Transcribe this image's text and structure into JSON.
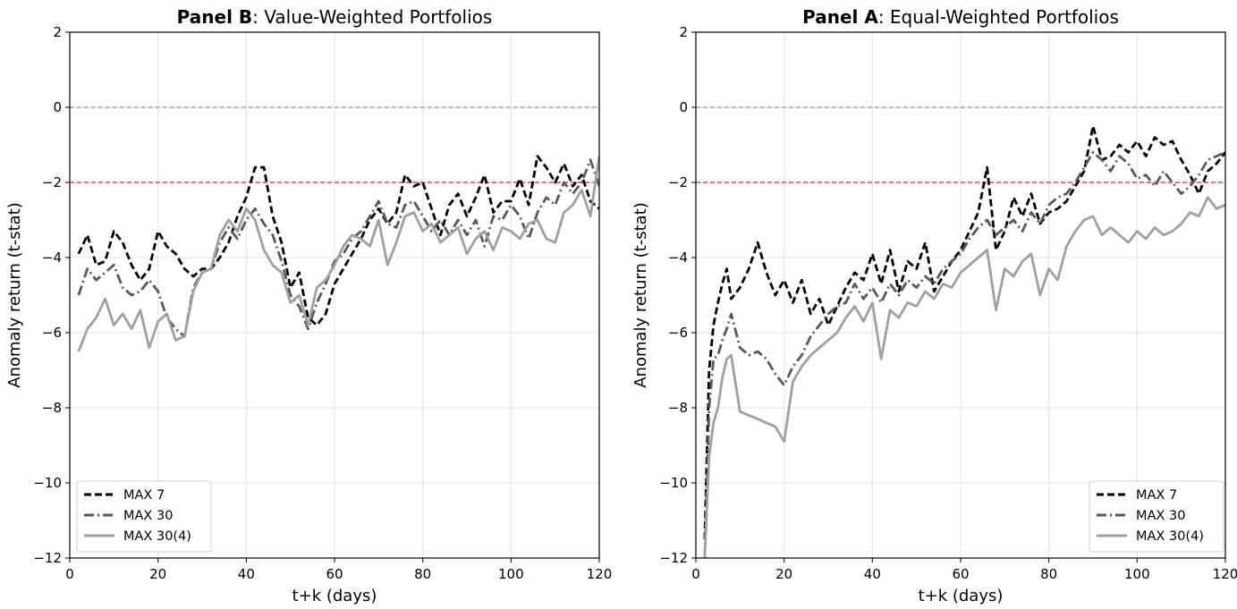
{
  "chart_data": [
    {
      "type": "line",
      "panel": "left",
      "title_bold": "Panel B",
      "title_rest": ": Value-Weighted Portfolios",
      "xlabel": "t+k (days)",
      "ylabel": "Anomaly return (t-stat)",
      "xlim": [
        0,
        120
      ],
      "ylim": [
        -12,
        2
      ],
      "xticks": [
        0,
        20,
        40,
        60,
        80,
        100,
        120
      ],
      "yticks": [
        2,
        0,
        -2,
        -4,
        -6,
        -8,
        -10,
        -12
      ],
      "xtick_labels": [
        "0",
        "20",
        "40",
        "60",
        "80",
        "100",
        "120"
      ],
      "ytick_labels": [
        "2",
        "0",
        "−2",
        "−4",
        "−6",
        "−8",
        "−10",
        "−12"
      ],
      "grid": true,
      "reference_lines": [
        {
          "y": 0,
          "color": "#a6a6a6"
        },
        {
          "y": -2,
          "color": "#e8474f"
        }
      ],
      "legend": {
        "position": "lower-left",
        "entries": [
          "MAX 7",
          "MAX 30",
          "MAX 30(4)"
        ]
      },
      "series": [
        {
          "name": "MAX 7",
          "style": "dashed",
          "color": "#000000",
          "x": [
            2,
            4,
            6,
            8,
            10,
            12,
            14,
            16,
            18,
            20,
            22,
            24,
            26,
            28,
            30,
            32,
            34,
            36,
            38,
            40,
            42,
            44,
            46,
            48,
            50,
            52,
            54,
            56,
            58,
            60,
            62,
            64,
            66,
            68,
            70,
            72,
            74,
            76,
            78,
            80,
            82,
            84,
            86,
            88,
            90,
            92,
            94,
            96,
            98,
            100,
            102,
            104,
            106,
            108,
            110,
            112,
            114,
            116,
            118,
            120
          ],
          "y": [
            -3.9,
            -3.4,
            -4.2,
            -4.1,
            -3.3,
            -3.6,
            -4.2,
            -4.6,
            -4.3,
            -3.3,
            -3.7,
            -3.9,
            -4.3,
            -4.5,
            -4.3,
            -4.3,
            -4.0,
            -3.6,
            -2.9,
            -2.4,
            -1.6,
            -1.6,
            -2.9,
            -3.6,
            -4.8,
            -4.4,
            -5.6,
            -5.8,
            -5.5,
            -4.7,
            -4.3,
            -3.9,
            -3.5,
            -3.0,
            -2.7,
            -3.1,
            -2.8,
            -1.8,
            -2.1,
            -2.0,
            -2.7,
            -3.4,
            -2.6,
            -2.3,
            -2.9,
            -2.4,
            -1.8,
            -2.8,
            -2.5,
            -2.5,
            -1.9,
            -2.6,
            -1.3,
            -1.6,
            -2.0,
            -1.5,
            -2.1,
            -1.8,
            -2.5,
            -2.7
          ]
        },
        {
          "name": "MAX 30",
          "style": "dashdot",
          "color": "#595959",
          "x": [
            2,
            4,
            6,
            8,
            10,
            12,
            14,
            16,
            18,
            20,
            22,
            24,
            26,
            28,
            30,
            32,
            34,
            36,
            38,
            40,
            42,
            44,
            46,
            48,
            50,
            52,
            54,
            56,
            58,
            60,
            62,
            64,
            66,
            68,
            70,
            72,
            74,
            76,
            78,
            80,
            82,
            84,
            86,
            88,
            90,
            92,
            94,
            96,
            98,
            100,
            102,
            104,
            106,
            108,
            110,
            112,
            114,
            116,
            118,
            120
          ],
          "y": [
            -5.0,
            -4.3,
            -4.6,
            -4.4,
            -4.2,
            -4.8,
            -5.0,
            -4.9,
            -4.6,
            -4.9,
            -5.6,
            -5.9,
            -6.1,
            -4.8,
            -4.4,
            -4.3,
            -3.6,
            -3.2,
            -3.5,
            -3.0,
            -2.7,
            -3.1,
            -3.4,
            -4.1,
            -5.0,
            -5.3,
            -5.9,
            -5.2,
            -4.7,
            -4.1,
            -3.9,
            -3.5,
            -3.3,
            -2.9,
            -2.5,
            -3.1,
            -3.2,
            -2.6,
            -2.5,
            -2.9,
            -3.3,
            -3.0,
            -3.4,
            -3.0,
            -3.4,
            -3.0,
            -3.7,
            -2.9,
            -3.0,
            -2.6,
            -2.9,
            -3.5,
            -2.8,
            -2.4,
            -2.6,
            -2.0,
            -2.3,
            -2.0,
            -1.4,
            -2.1
          ]
        },
        {
          "name": "MAX 30(4)",
          "style": "solid",
          "color": "#a0a0a0",
          "x": [
            2,
            4,
            6,
            8,
            10,
            12,
            14,
            16,
            18,
            20,
            22,
            24,
            26,
            28,
            30,
            32,
            34,
            36,
            38,
            40,
            42,
            44,
            46,
            48,
            50,
            52,
            54,
            56,
            58,
            60,
            62,
            64,
            66,
            68,
            70,
            72,
            74,
            76,
            78,
            80,
            82,
            84,
            86,
            88,
            90,
            92,
            94,
            96,
            98,
            100,
            102,
            104,
            106,
            108,
            110,
            112,
            114,
            116,
            118,
            120
          ],
          "y": [
            -6.5,
            -5.9,
            -5.6,
            -5.1,
            -5.8,
            -5.5,
            -5.9,
            -5.4,
            -6.4,
            -5.7,
            -5.5,
            -6.2,
            -6.1,
            -4.9,
            -4.4,
            -4.3,
            -3.4,
            -3.0,
            -3.3,
            -2.7,
            -3.0,
            -3.8,
            -4.2,
            -4.4,
            -5.2,
            -5.0,
            -5.8,
            -4.8,
            -4.6,
            -4.2,
            -3.7,
            -3.4,
            -3.5,
            -3.7,
            -3.0,
            -4.2,
            -3.6,
            -2.9,
            -2.8,
            -3.3,
            -3.1,
            -3.6,
            -3.4,
            -3.2,
            -3.9,
            -3.5,
            -3.3,
            -3.8,
            -3.2,
            -3.3,
            -3.5,
            -3.1,
            -3.0,
            -3.5,
            -3.6,
            -2.8,
            -2.6,
            -2.2,
            -2.9,
            -1.3
          ]
        }
      ]
    },
    {
      "type": "line",
      "panel": "right",
      "title_bold": "Panel A",
      "title_rest": ": Equal-Weighted Portfolios",
      "xlabel": "t+k (days)",
      "ylabel": "Anomaly return (t-stat)",
      "xlim": [
        0,
        120
      ],
      "ylim": [
        -12,
        2
      ],
      "xticks": [
        0,
        20,
        40,
        60,
        80,
        100,
        120
      ],
      "yticks": [
        2,
        0,
        -2,
        -4,
        -6,
        -8,
        -10,
        -12
      ],
      "xtick_labels": [
        "0",
        "20",
        "40",
        "60",
        "80",
        "100",
        "120"
      ],
      "ytick_labels": [
        "2",
        "0",
        "−2",
        "−4",
        "−6",
        "−8",
        "−10",
        "−12"
      ],
      "grid": true,
      "reference_lines": [
        {
          "y": 0,
          "color": "#a6a6a6"
        },
        {
          "y": -2,
          "color": "#e8474f"
        }
      ],
      "legend": {
        "position": "lower-right",
        "entries": [
          "MAX 7",
          "MAX 30",
          "MAX 30(4)"
        ]
      },
      "series": [
        {
          "name": "MAX 7",
          "style": "dashed",
          "color": "#000000",
          "x": [
            2,
            3,
            4,
            5,
            6,
            7,
            8,
            10,
            12,
            14,
            16,
            18,
            20,
            22,
            24,
            26,
            28,
            30,
            32,
            34,
            36,
            38,
            40,
            42,
            44,
            46,
            48,
            50,
            52,
            54,
            56,
            58,
            60,
            62,
            64,
            66,
            68,
            70,
            72,
            74,
            76,
            78,
            80,
            82,
            84,
            86,
            88,
            90,
            92,
            94,
            96,
            98,
            100,
            102,
            104,
            106,
            108,
            110,
            112,
            114,
            116,
            118,
            120
          ],
          "y": [
            -11.5,
            -7.0,
            -5.8,
            -5.2,
            -4.7,
            -4.3,
            -5.1,
            -4.8,
            -4.3,
            -3.6,
            -4.4,
            -5.0,
            -4.6,
            -5.2,
            -4.6,
            -5.5,
            -5.1,
            -5.8,
            -5.3,
            -4.8,
            -4.4,
            -4.6,
            -3.9,
            -4.7,
            -3.8,
            -4.9,
            -4.1,
            -4.3,
            -3.6,
            -4.9,
            -4.5,
            -4.1,
            -3.8,
            -3.3,
            -2.8,
            -1.6,
            -3.8,
            -3.3,
            -2.4,
            -2.9,
            -2.3,
            -3.1,
            -2.8,
            -2.7,
            -2.5,
            -2.1,
            -1.7,
            -0.5,
            -1.4,
            -1.3,
            -1.0,
            -1.2,
            -0.9,
            -1.3,
            -0.8,
            -1.0,
            -0.9,
            -1.4,
            -1.8,
            -2.3,
            -1.7,
            -1.5,
            -1.2
          ]
        },
        {
          "name": "MAX 30",
          "style": "dashdot",
          "color": "#595959",
          "x": [
            2,
            3,
            4,
            5,
            6,
            7,
            8,
            10,
            12,
            14,
            16,
            18,
            20,
            22,
            24,
            26,
            28,
            30,
            32,
            34,
            36,
            38,
            40,
            42,
            44,
            46,
            48,
            50,
            52,
            54,
            56,
            58,
            60,
            62,
            64,
            66,
            68,
            70,
            72,
            74,
            76,
            78,
            80,
            82,
            84,
            86,
            88,
            90,
            92,
            94,
            96,
            98,
            100,
            102,
            104,
            106,
            108,
            110,
            112,
            114,
            116,
            118,
            120
          ],
          "y": [
            -12.0,
            -8.0,
            -6.7,
            -6.6,
            -6.2,
            -5.9,
            -5.5,
            -6.4,
            -6.6,
            -6.5,
            -6.7,
            -7.1,
            -7.4,
            -6.9,
            -6.6,
            -6.1,
            -5.8,
            -5.5,
            -5.3,
            -5.2,
            -4.7,
            -5.1,
            -4.8,
            -5.2,
            -4.7,
            -5.0,
            -4.6,
            -4.8,
            -4.5,
            -4.7,
            -4.3,
            -4.1,
            -3.9,
            -3.5,
            -3.2,
            -3.0,
            -3.4,
            -3.2,
            -3.0,
            -3.3,
            -2.8,
            -3.1,
            -2.6,
            -2.4,
            -2.3,
            -2.0,
            -1.6,
            -1.2,
            -1.4,
            -1.7,
            -1.3,
            -1.5,
            -1.9,
            -1.8,
            -2.1,
            -1.7,
            -2.0,
            -2.3,
            -2.1,
            -1.8,
            -1.4,
            -1.3,
            -1.2
          ]
        },
        {
          "name": "MAX 30(4)",
          "style": "solid",
          "color": "#a0a0a0",
          "x": [
            2,
            3,
            4,
            5,
            6,
            7,
            8,
            10,
            12,
            14,
            16,
            18,
            20,
            22,
            24,
            26,
            28,
            30,
            32,
            34,
            36,
            38,
            40,
            42,
            44,
            46,
            48,
            50,
            52,
            54,
            56,
            58,
            60,
            62,
            64,
            66,
            68,
            70,
            72,
            74,
            76,
            78,
            80,
            82,
            84,
            86,
            88,
            90,
            92,
            94,
            96,
            98,
            100,
            102,
            104,
            106,
            108,
            110,
            112,
            114,
            116,
            118,
            120
          ],
          "y": [
            -12.0,
            -9.3,
            -8.4,
            -8.0,
            -7.2,
            -6.7,
            -6.6,
            -8.1,
            -8.2,
            -8.3,
            -8.4,
            -8.5,
            -8.9,
            -7.3,
            -6.9,
            -6.6,
            -6.4,
            -6.2,
            -6.0,
            -5.6,
            -5.3,
            -5.7,
            -5.2,
            -6.7,
            -5.4,
            -5.6,
            -5.2,
            -5.3,
            -4.9,
            -5.1,
            -4.7,
            -4.8,
            -4.4,
            -4.2,
            -4.0,
            -3.8,
            -5.4,
            -4.3,
            -4.5,
            -4.1,
            -3.9,
            -5.0,
            -4.3,
            -4.6,
            -3.7,
            -3.3,
            -3.0,
            -2.9,
            -3.4,
            -3.2,
            -3.4,
            -3.6,
            -3.3,
            -3.5,
            -3.2,
            -3.4,
            -3.3,
            -3.1,
            -2.8,
            -2.9,
            -2.4,
            -2.7,
            -2.6
          ]
        }
      ]
    }
  ]
}
